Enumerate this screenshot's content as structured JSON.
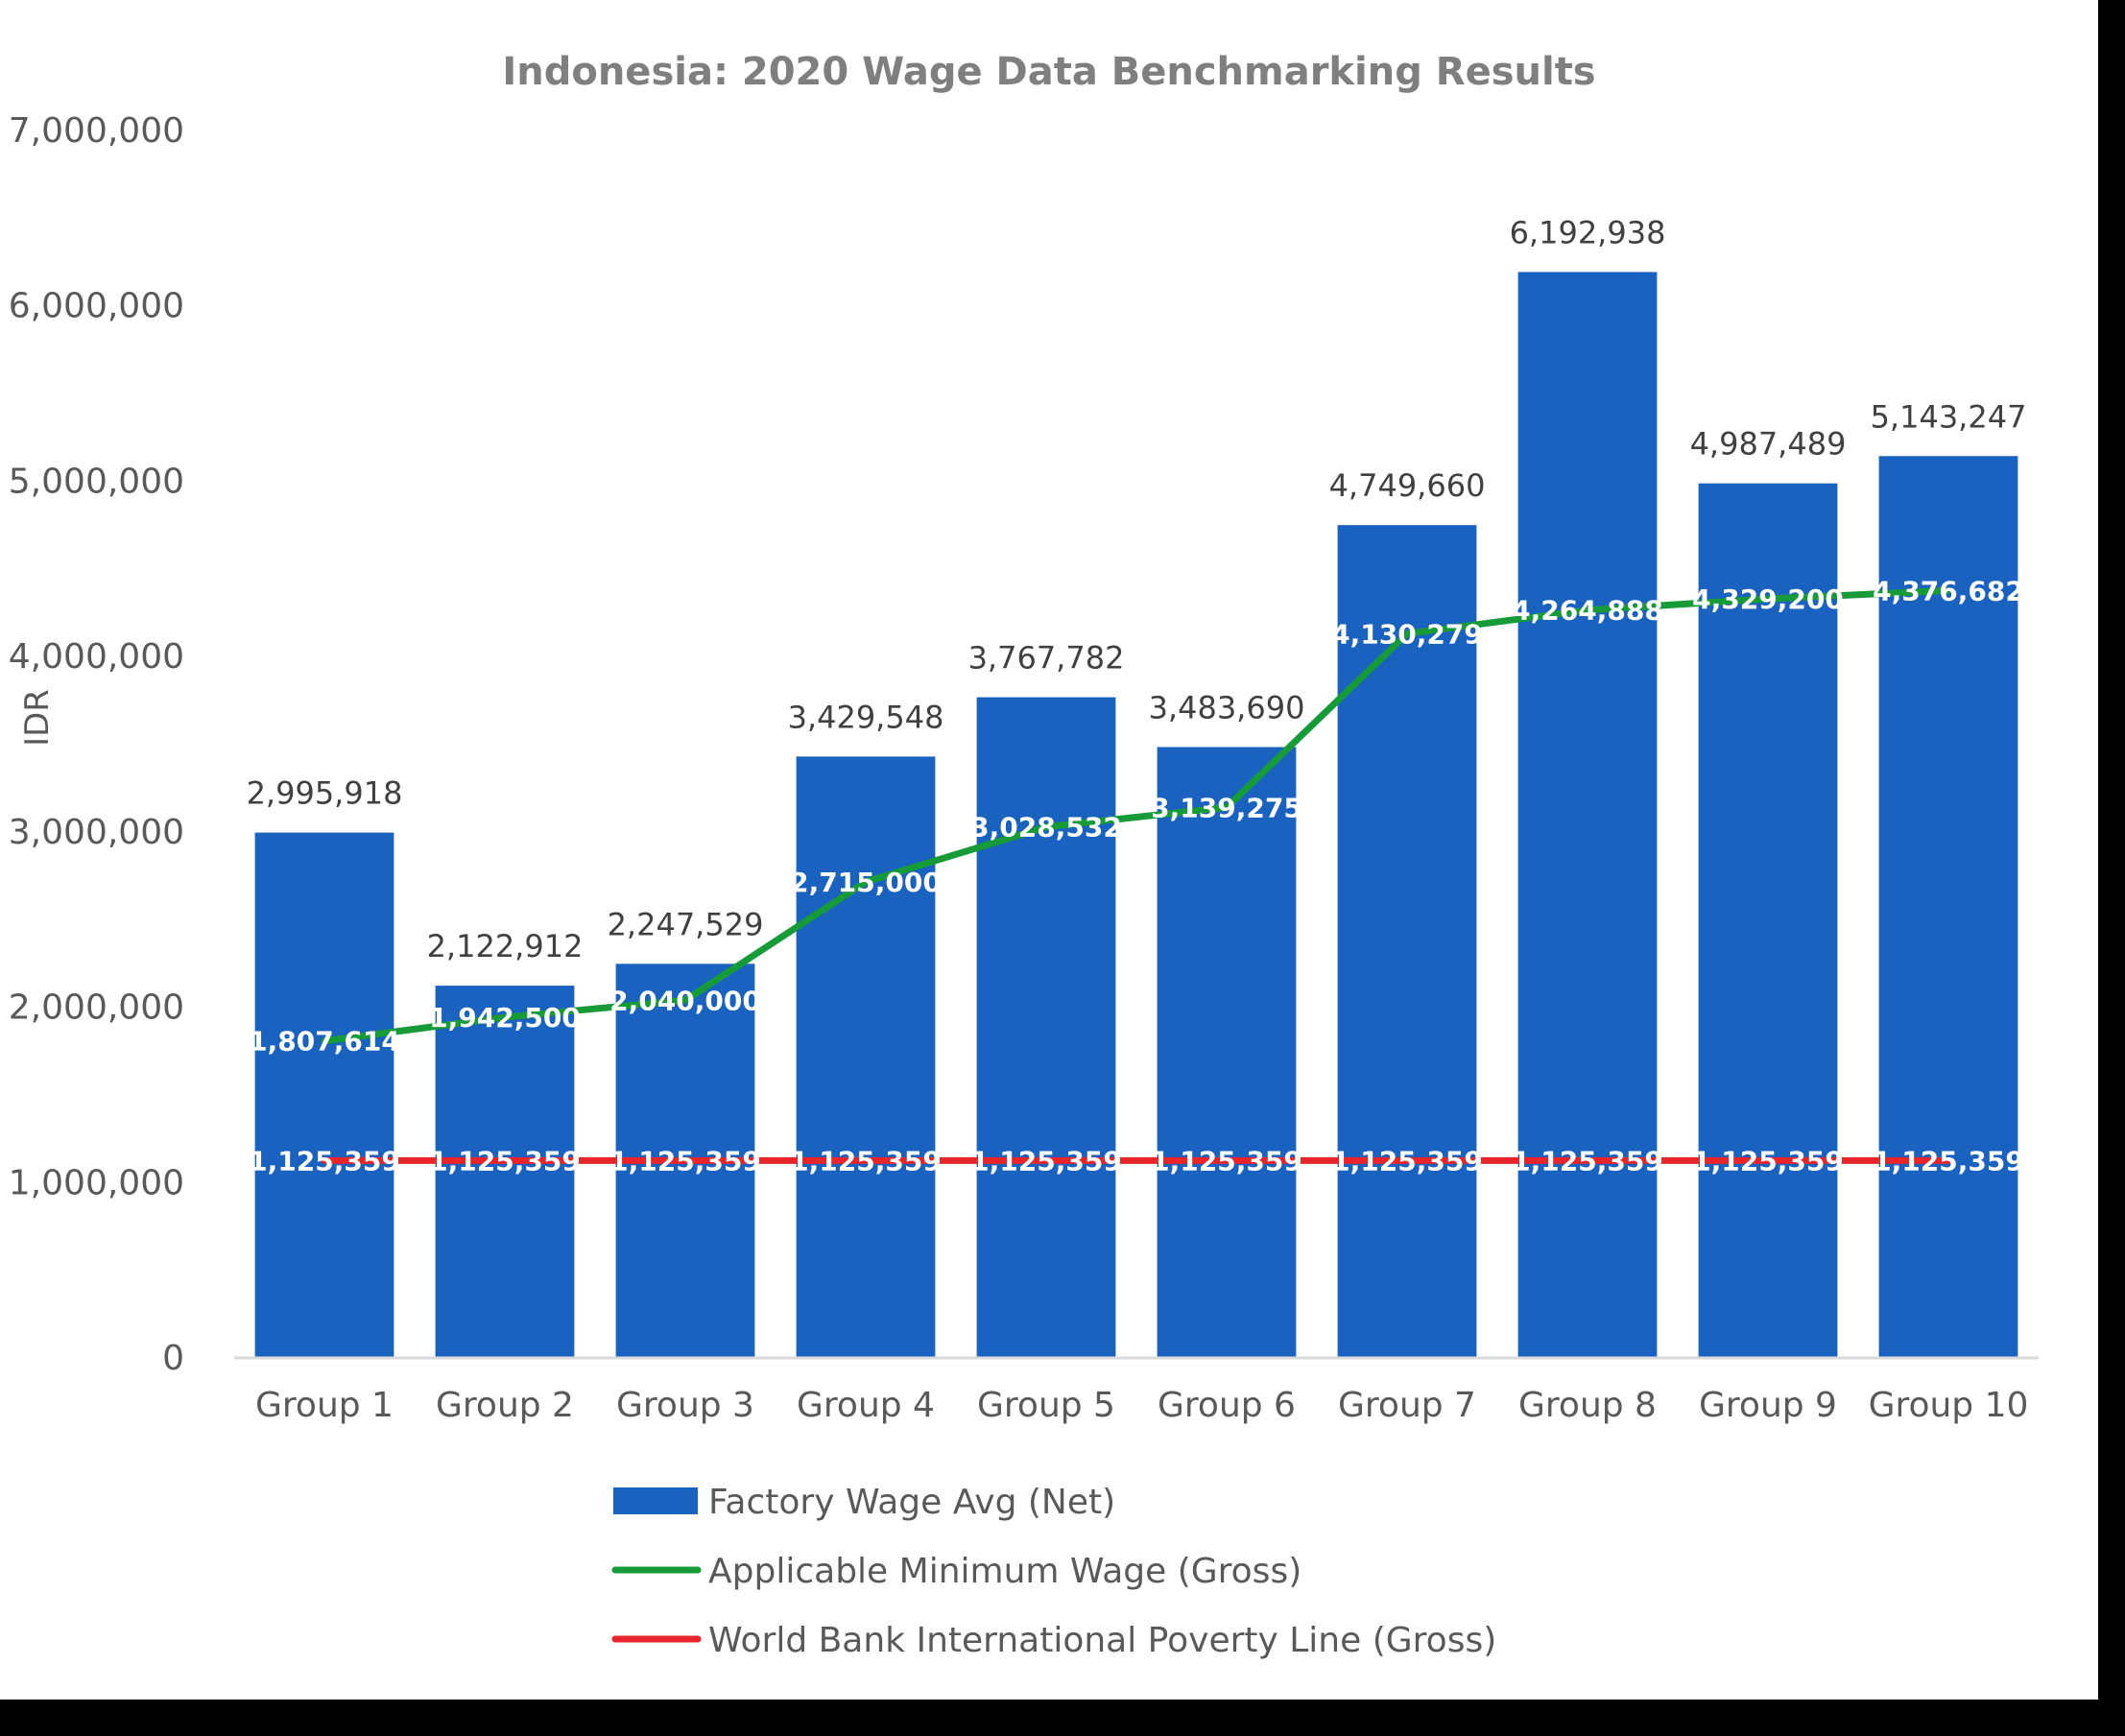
{
  "chart_data": {
    "type": "bar",
    "title": "Indonesia: 2020 Wage Data Benchmarking Results",
    "ylabel": "IDR",
    "xlabel": "",
    "ylim": [
      0,
      7000000
    ],
    "yticks": [
      0,
      1000000,
      2000000,
      3000000,
      4000000,
      5000000,
      6000000,
      7000000
    ],
    "ytick_labels": [
      "0",
      "1,000,000",
      "2,000,000",
      "3,000,000",
      "4,000,000",
      "5,000,000",
      "6,000,000",
      "7,000,000"
    ],
    "grid": false,
    "legend_position": "bottom",
    "categories": [
      "Group 1",
      "Group 2",
      "Group 3",
      "Group 4",
      "Group 5",
      "Group 6",
      "Group 7",
      "Group 8",
      "Group 9",
      "Group 10"
    ],
    "series": [
      {
        "name": "Factory Wage Avg (Net)",
        "kind": "bar",
        "color": "#1a62c0",
        "values": [
          2995918,
          2122912,
          2247529,
          3429548,
          3767782,
          3483690,
          4749660,
          6192938,
          4987489,
          5143247
        ],
        "labels": [
          "2,995,918",
          "2,122,912",
          "2,247,529",
          "3,429,548",
          "3,767,782",
          "3,483,690",
          "4,749,660",
          "6,192,938",
          "4,987,489",
          "5,143,247"
        ]
      },
      {
        "name": "Applicable Minimum Wage (Gross)",
        "kind": "line",
        "color": "#179b38",
        "values": [
          1807614,
          1942500,
          2040000,
          2715000,
          3028532,
          3139275,
          4130279,
          4264888,
          4329200,
          4376682
        ],
        "labels": [
          "1,807,614",
          "1,942,500",
          "2,040,000",
          "2,715,000",
          "3,028,532",
          "3,139,275",
          "4,130,279",
          "4,264,888",
          "4,329,200",
          "4,376,682"
        ]
      },
      {
        "name": "World Bank International Poverty Line (Gross)",
        "kind": "line",
        "color": "#e8252a",
        "values": [
          1125359,
          1125359,
          1125359,
          1125359,
          1125359,
          1125359,
          1125359,
          1125359,
          1125359,
          1125359
        ],
        "labels": [
          "1,125,359",
          "1,125,359",
          "1,125,359",
          "1,125,359",
          "1,125,359",
          "1,125,359",
          "1,125,359",
          "1,125,359",
          "1,125,359",
          "1,125,359"
        ]
      }
    ]
  }
}
